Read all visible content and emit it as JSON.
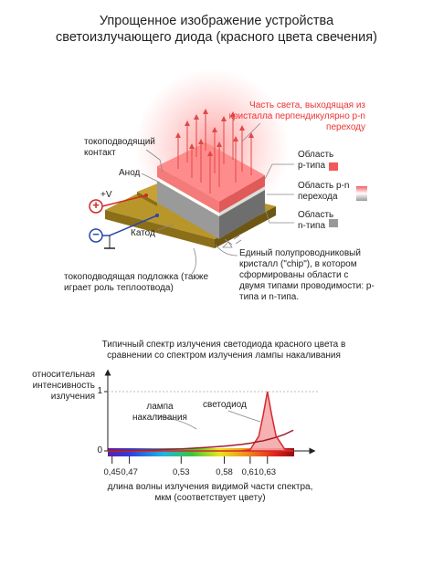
{
  "title": "Упрощенное изображение устройства светоизлучающего диода (красного цвета свечения)",
  "diagram": {
    "light_label": "Часть света, выходящая из кристалла перпендикулярно p-n переходу",
    "contact_label": "токоподводящий контакт",
    "anode": "Анод",
    "plus_sign": "+",
    "voltage": "+V",
    "minus_sign": "−",
    "cathode": "Катод",
    "p_region": "Область p-типа",
    "pn_region": "Область p-n перехода",
    "n_region": "Область n-типа",
    "chip_label": "Единый полупроводниковый кристалл (\"chip\"), в котором сформированы области с двумя типами проводимости: p-типа и n-типа.",
    "substrate_label": "токоподводящая подложка (также играет роль теплоотвода)"
  },
  "chart_data": {
    "type": "line",
    "title": "Типичный спектр излучения светодиода красного цвета в сравнении со спектром излучения лампы накаливания",
    "y_label": "относительная интенсивность излучения",
    "x_label": "длина волны излучения видимой части спектра, мкм (соответствует цвету)",
    "x": [
      0.445,
      0.47,
      0.5,
      0.53,
      0.56,
      0.58,
      0.6,
      0.61,
      0.62,
      0.625,
      0.63,
      0.635,
      0.64,
      0.65,
      0.66
    ],
    "series": [
      {
        "name": "лампа накаливания",
        "color": "#a51c24",
        "values": [
          0.005,
          0.01,
          0.02,
          0.035,
          0.06,
          0.08,
          0.11,
          0.13,
          0.16,
          0.17,
          0.19,
          0.21,
          0.23,
          0.28,
          0.35
        ]
      },
      {
        "name": "светодиод",
        "color": "#d9262e",
        "fill": "#f4a3a6",
        "values": [
          0,
          0,
          0,
          0,
          0,
          0,
          0,
          0.02,
          0.25,
          0.6,
          1,
          0.6,
          0.25,
          0.03,
          0
        ]
      }
    ],
    "xlim": [
      0.445,
      0.68
    ],
    "ylim": [
      0,
      1.3
    ],
    "xticks": [
      {
        "value": 0.45,
        "label": "0,45"
      },
      {
        "value": 0.47,
        "label": "0,47"
      },
      {
        "value": 0.53,
        "label": "0,53"
      },
      {
        "value": 0.58,
        "label": "0,58"
      },
      {
        "value": 0.61,
        "label": "0,61"
      },
      {
        "value": 0.63,
        "label": "0,63"
      }
    ],
    "yticks": [
      0,
      1
    ],
    "grid": true
  }
}
